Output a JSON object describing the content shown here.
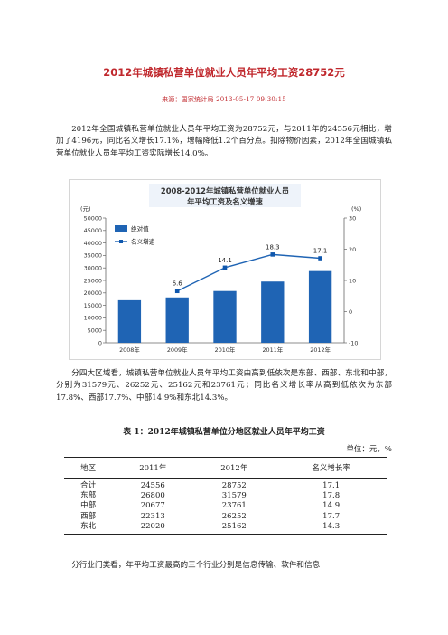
{
  "title": "2012年城镇私营单位就业人员年平均工资28752元",
  "meta": "来源：国家统计局   2013-05-17  09:30:15",
  "paragraphs": {
    "p1": "2012年全国城镇私营单位就业人员年平均工资为28752元，与2011年的24556元相比，增加了4196元，同比名义增长17.1%，增幅降低1.2个百分点。扣除物价因素，2012年全国城镇私营单位就业人员年平均工资实际增长14.0%。",
    "p2": "分四大区域看，城镇私营单位就业人员年平均工资由高到低依次是东部、西部、东北和中部，分别为31579元、26252元、25162元和23761元；同比名义增长率从高到低依次为东部17.8%、西部17.7%、中部14.9%和东北14.3%。",
    "p3": "分行业门类看，年平均工资最高的三个行业分别是信息传输、软件和信息"
  },
  "chart_data": {
    "type": "bar",
    "title_line1": "2008-2012年城镇私营单位就业人员",
    "title_line2": "年平均工资及名义增速",
    "categories": [
      "2008年",
      "2009年",
      "2010年",
      "2011年",
      "2012年"
    ],
    "series": [
      {
        "name": "绝对值",
        "type": "bar",
        "axis": "left",
        "values": [
          17071,
          18199,
          20759,
          24556,
          28752
        ]
      },
      {
        "name": "名义增速",
        "type": "line",
        "axis": "right",
        "values": [
          null,
          6.6,
          14.1,
          18.3,
          17.1
        ],
        "labels": [
          "",
          "6.6",
          "14.1",
          "18.3",
          "17.1"
        ]
      }
    ],
    "left_axis": {
      "unit": "(元)",
      "ylim": [
        0,
        50000
      ],
      "ticks": [
        "0",
        "5000",
        "10000",
        "15000",
        "20000",
        "25000",
        "30000",
        "35000",
        "40000",
        "45000",
        "50000"
      ]
    },
    "right_axis": {
      "unit": "(%)",
      "ylim": [
        -10,
        30
      ],
      "ticks": [
        "-10",
        "0",
        "10",
        "20",
        "30"
      ]
    },
    "grid": false,
    "legend_position": "top-left",
    "colors": {
      "bar": "#1f64b4",
      "line": "#1f64b4",
      "marker": "#0f57ad",
      "title_bg": "#eef3fa"
    }
  },
  "table": {
    "caption": "表 1：2012年城镇私营单位分地区就业人员年平均工资",
    "unit": "单位：元，%",
    "headers": [
      "地区",
      "2011年",
      "2012年",
      "名义增长率"
    ],
    "rows": [
      [
        "合计",
        "24556",
        "28752",
        "17.1"
      ],
      [
        "东部",
        "26800",
        "31579",
        "17.8"
      ],
      [
        "中部",
        "20677",
        "23761",
        "14.9"
      ],
      [
        "西部",
        "22313",
        "26252",
        "17.7"
      ],
      [
        "东北",
        "22020",
        "25162",
        "14.3"
      ]
    ]
  }
}
